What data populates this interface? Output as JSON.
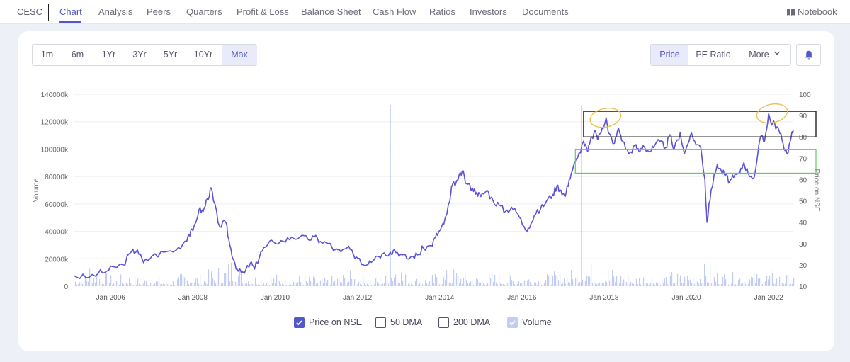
{
  "nav": {
    "company": "CESC",
    "tabs": [
      "Chart",
      "Analysis",
      "Peers",
      "Quarters",
      "Profit & Loss",
      "Balance Sheet",
      "Cash Flow",
      "Ratios",
      "Investors",
      "Documents"
    ],
    "notebook_label": "Notebook"
  },
  "controls": {
    "ranges": [
      "1m",
      "6m",
      "1Yr",
      "3Yr",
      "5Yr",
      "10Yr",
      "Max"
    ],
    "selected_range": "Max",
    "modes": [
      "Price",
      "PE Ratio",
      "More"
    ],
    "selected_mode": "Price",
    "bell_icon": "bell-icon"
  },
  "legend": [
    {
      "label": "Price on NSE",
      "state": "checked"
    },
    {
      "label": "50 DMA",
      "state": "unchecked"
    },
    {
      "label": "200 DMA",
      "state": "unchecked"
    },
    {
      "label": "Volume",
      "state": "checked-light"
    }
  ],
  "colors": {
    "accent": "#5257c9",
    "price_line": "#5b53d6",
    "volume_bars": "#c3ccf1",
    "marker_line": "#a6b4ef",
    "black_box": "#222222",
    "green_box": "#5fce5f",
    "yellow_ellipse": "#e8c24a"
  },
  "chart_data": {
    "type": "line",
    "title": "",
    "xlabel": "",
    "ylabel": "Volume",
    "y2label": "Price on NSE",
    "x_tick_labels": [
      "Jan 2006",
      "Jan 2008",
      "Jan 2010",
      "Jan 2012",
      "Jan 2014",
      "Jan 2016",
      "Jan 2018",
      "Jan 2020",
      "Jan 2022"
    ],
    "y_tick_labels": [
      "0",
      "20000k",
      "40000k",
      "60000k",
      "80000k",
      "100000k",
      "120000k",
      "140000k"
    ],
    "y2_tick_labels": [
      "10",
      "20",
      "30",
      "40",
      "50",
      "60",
      "70",
      "80",
      "90",
      "100"
    ],
    "ylim": [
      0,
      140000000
    ],
    "y2lim": [
      10,
      100
    ],
    "xlim": [
      2005.1,
      2022.6
    ],
    "grid": true,
    "price_series": {
      "name": "Price on NSE",
      "axis": "right",
      "points": [
        [
          2005.1,
          15
        ],
        [
          2005.4,
          14
        ],
        [
          2005.7,
          16
        ],
        [
          2005.9,
          17
        ],
        [
          2006.1,
          19
        ],
        [
          2006.3,
          20
        ],
        [
          2006.5,
          26
        ],
        [
          2006.65,
          27
        ],
        [
          2006.8,
          21
        ],
        [
          2007.0,
          24
        ],
        [
          2007.3,
          26
        ],
        [
          2007.6,
          27
        ],
        [
          2007.8,
          31
        ],
        [
          2007.9,
          34
        ],
        [
          2008.0,
          36
        ],
        [
          2008.15,
          46
        ],
        [
          2008.25,
          45
        ],
        [
          2008.35,
          51
        ],
        [
          2008.45,
          56
        ],
        [
          2008.5,
          50
        ],
        [
          2008.65,
          38
        ],
        [
          2008.8,
          40
        ],
        [
          2008.9,
          29
        ],
        [
          2009.0,
          22
        ],
        [
          2009.1,
          17
        ],
        [
          2009.25,
          16
        ],
        [
          2009.4,
          21
        ],
        [
          2009.5,
          18
        ],
        [
          2009.65,
          26
        ],
        [
          2009.8,
          29
        ],
        [
          2009.95,
          31
        ],
        [
          2010.2,
          31
        ],
        [
          2010.4,
          33
        ],
        [
          2010.6,
          33
        ],
        [
          2010.8,
          32
        ],
        [
          2010.95,
          33
        ],
        [
          2011.1,
          31
        ],
        [
          2011.3,
          30
        ],
        [
          2011.45,
          27
        ],
        [
          2011.6,
          26
        ],
        [
          2011.75,
          28
        ],
        [
          2011.9,
          25
        ],
        [
          2012.05,
          23
        ],
        [
          2012.15,
          20
        ],
        [
          2012.3,
          22
        ],
        [
          2012.45,
          24
        ],
        [
          2012.6,
          25
        ],
        [
          2012.8,
          26
        ],
        [
          2012.9,
          27
        ],
        [
          2013.05,
          25
        ],
        [
          2013.2,
          23
        ],
        [
          2013.35,
          24
        ],
        [
          2013.5,
          25
        ],
        [
          2013.6,
          28
        ],
        [
          2013.8,
          29
        ],
        [
          2013.9,
          33
        ],
        [
          2014.0,
          36
        ],
        [
          2014.1,
          39
        ],
        [
          2014.25,
          50
        ],
        [
          2014.3,
          57
        ],
        [
          2014.45,
          60
        ],
        [
          2014.55,
          64
        ],
        [
          2014.65,
          58
        ],
        [
          2014.8,
          56
        ],
        [
          2014.9,
          54
        ],
        [
          2015.0,
          52
        ],
        [
          2015.15,
          55
        ],
        [
          2015.3,
          50
        ],
        [
          2015.45,
          48
        ],
        [
          2015.6,
          45
        ],
        [
          2015.75,
          47
        ],
        [
          2015.9,
          44
        ],
        [
          2016.05,
          38
        ],
        [
          2016.15,
          37
        ],
        [
          2016.3,
          43
        ],
        [
          2016.45,
          46
        ],
        [
          2016.6,
          50
        ],
        [
          2016.75,
          53
        ],
        [
          2016.85,
          57
        ],
        [
          2016.95,
          55
        ],
        [
          2017.05,
          52
        ],
        [
          2017.15,
          60
        ],
        [
          2017.25,
          66
        ],
        [
          2017.35,
          70
        ],
        [
          2017.5,
          78
        ],
        [
          2017.6,
          73
        ],
        [
          2017.7,
          80
        ],
        [
          2017.8,
          82
        ],
        [
          2017.85,
          79
        ],
        [
          2017.95,
          84
        ],
        [
          2018.05,
          89
        ],
        [
          2018.1,
          82
        ],
        [
          2018.25,
          77
        ],
        [
          2018.35,
          84
        ],
        [
          2018.45,
          78
        ],
        [
          2018.6,
          72
        ],
        [
          2018.75,
          76
        ],
        [
          2018.85,
          73
        ],
        [
          2018.95,
          76
        ],
        [
          2019.1,
          73
        ],
        [
          2019.2,
          75
        ],
        [
          2019.35,
          78
        ],
        [
          2019.5,
          75
        ],
        [
          2019.6,
          81
        ],
        [
          2019.7,
          74
        ],
        [
          2019.85,
          82
        ],
        [
          2019.95,
          72
        ],
        [
          2020.1,
          81
        ],
        [
          2020.2,
          78
        ],
        [
          2020.35,
          75
        ],
        [
          2020.45,
          60
        ],
        [
          2020.5,
          40
        ],
        [
          2020.6,
          55
        ],
        [
          2020.75,
          67
        ],
        [
          2020.85,
          64
        ],
        [
          2020.95,
          62
        ],
        [
          2021.05,
          59
        ],
        [
          2021.15,
          61
        ],
        [
          2021.3,
          63
        ],
        [
          2021.4,
          68
        ],
        [
          2021.5,
          63
        ],
        [
          2021.65,
          61
        ],
        [
          2021.8,
          80
        ],
        [
          2021.9,
          78
        ],
        [
          2022.0,
          91
        ],
        [
          2022.05,
          87
        ],
        [
          2022.15,
          86
        ],
        [
          2022.25,
          83
        ],
        [
          2022.35,
          77
        ],
        [
          2022.45,
          72
        ],
        [
          2022.55,
          80
        ],
        [
          2022.6,
          83
        ]
      ]
    },
    "volume_series": {
      "name": "Volume",
      "axis": "left",
      "note_unit": "k",
      "points": [
        [
          2005.2,
          9000
        ],
        [
          2005.5,
          21000
        ],
        [
          2005.8,
          12000
        ],
        [
          2006.1,
          7000
        ],
        [
          2006.4,
          11000
        ],
        [
          2006.7,
          6000
        ],
        [
          2007.0,
          9000
        ],
        [
          2007.3,
          5000
        ],
        [
          2007.6,
          8000
        ],
        [
          2007.9,
          13000
        ],
        [
          2008.2,
          9000
        ],
        [
          2008.5,
          15000
        ],
        [
          2008.8,
          18000
        ],
        [
          2009.0,
          28000
        ],
        [
          2009.2,
          14000
        ],
        [
          2009.4,
          11000
        ],
        [
          2009.7,
          8000
        ],
        [
          2010.0,
          10000
        ],
        [
          2010.3,
          7000
        ],
        [
          2010.6,
          9000
        ],
        [
          2010.9,
          8000
        ],
        [
          2011.2,
          6000
        ],
        [
          2011.5,
          9000
        ],
        [
          2011.8,
          12000
        ],
        [
          2012.1,
          8000
        ],
        [
          2012.4,
          7000
        ],
        [
          2012.7,
          10000
        ],
        [
          2012.9,
          28000
        ],
        [
          2013.2,
          8000
        ],
        [
          2013.5,
          7000
        ],
        [
          2013.8,
          9000
        ],
        [
          2014.1,
          12000
        ],
        [
          2014.4,
          15000
        ],
        [
          2014.7,
          10000
        ],
        [
          2015.0,
          8000
        ],
        [
          2015.3,
          11000
        ],
        [
          2015.6,
          9000
        ],
        [
          2015.9,
          13000
        ],
        [
          2016.2,
          10000
        ],
        [
          2016.5,
          9000
        ],
        [
          2016.8,
          11000
        ],
        [
          2017.1,
          14000
        ],
        [
          2017.3,
          12000
        ],
        [
          2017.5,
          27000
        ],
        [
          2017.8,
          13000
        ],
        [
          2018.1,
          16000
        ],
        [
          2018.4,
          12000
        ],
        [
          2018.7,
          10000
        ],
        [
          2019.0,
          11000
        ],
        [
          2019.3,
          9000
        ],
        [
          2019.6,
          12000
        ],
        [
          2019.9,
          10000
        ],
        [
          2020.2,
          14000
        ],
        [
          2020.5,
          18000
        ],
        [
          2020.8,
          12000
        ],
        [
          2021.1,
          10000
        ],
        [
          2021.4,
          15000
        ],
        [
          2021.7,
          11000
        ],
        [
          2022.0,
          13000
        ],
        [
          2022.3,
          10000
        ],
        [
          2022.55,
          9000
        ]
      ]
    },
    "vertical_markers": [
      {
        "x": 2012.8,
        "label": ""
      },
      {
        "x": 2017.45,
        "label": ""
      }
    ],
    "annotations": [
      {
        "type": "rectangle",
        "color": "black",
        "x_range": [
          2017.5,
          2022.6
        ],
        "y2_range": [
          80,
          92
        ],
        "label": ""
      },
      {
        "type": "rectangle",
        "color": "green",
        "x_range": [
          2017.3,
          2022.6
        ],
        "y2_range": [
          63,
          74
        ],
        "label": ""
      },
      {
        "type": "ellipse",
        "color": "yellow",
        "center": [
          2018.05,
          89
        ],
        "label": ""
      },
      {
        "type": "ellipse",
        "color": "yellow",
        "center": [
          2022.1,
          91
        ],
        "label": ""
      }
    ]
  }
}
